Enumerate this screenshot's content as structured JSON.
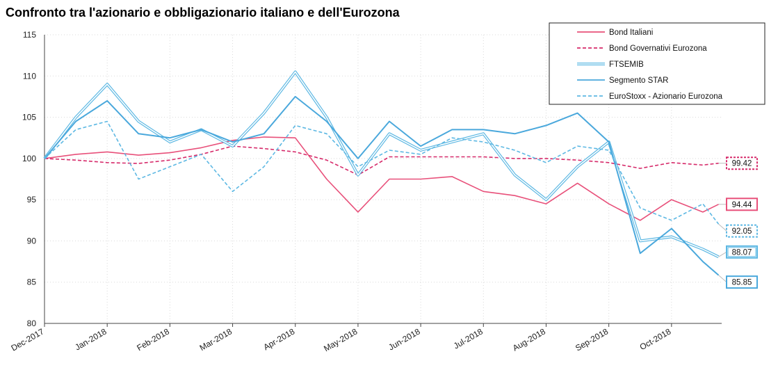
{
  "title": "Confronto tra l'azionario e obbligazionario italiano e dell'Eurozona",
  "chart_data": {
    "type": "line",
    "title": "Confronto tra l'azionario e obbligazionario italiano e dell'Eurozona",
    "ylim": [
      80,
      115
    ],
    "yticks": [
      80,
      85,
      90,
      95,
      100,
      105,
      110,
      115
    ],
    "x_tick_labels": [
      "Dec-2017",
      "Jan-2018",
      "Feb-2018",
      "Mar-2018",
      "Apr-2018",
      "May-2018",
      "Jun-2018",
      "Jul-2018",
      "Aug-2018",
      "Sep-2018",
      "Oct-2018"
    ],
    "grid": true,
    "legend_position": "top-right",
    "x_months": [
      0,
      0.5,
      1,
      1.5,
      2,
      2.5,
      3,
      3.5,
      4,
      4.5,
      5,
      5.5,
      6,
      6.5,
      7,
      7.5,
      8,
      8.5,
      9,
      9.5,
      10,
      10.5,
      10.75
    ],
    "series": [
      {
        "name": "Bond Italiani",
        "color": "#e8507a",
        "style": "solid",
        "end_label": "94.44",
        "values": [
          100,
          100.5,
          100.8,
          100.4,
          100.7,
          101.3,
          102.2,
          102.6,
          102.5,
          97.5,
          93.5,
          97.5,
          97.5,
          97.8,
          96.0,
          95.5,
          94.5,
          97.0,
          94.5,
          92.5,
          95.0,
          93.5,
          94.44
        ]
      },
      {
        "name": "Bond Governativi Eurozona",
        "color": "#d62a6a",
        "style": "dashed",
        "end_label": "99.42",
        "values": [
          100,
          99.8,
          99.5,
          99.4,
          99.8,
          100.5,
          101.5,
          101.2,
          100.8,
          99.8,
          98.0,
          100.2,
          100.2,
          100.2,
          100.2,
          100.0,
          100.0,
          99.8,
          99.5,
          98.8,
          99.5,
          99.2,
          99.42
        ]
      },
      {
        "name": "FTSEMIB",
        "color": "#5db8e3",
        "style": "double",
        "end_label": "88.07",
        "values": [
          100,
          105,
          109.0,
          104.5,
          102.0,
          103.5,
          101.5,
          105.5,
          110.5,
          105.0,
          98.0,
          103.0,
          101.0,
          102.0,
          103.0,
          98.0,
          95.0,
          99.0,
          102.0,
          90.0,
          90.5,
          89.0,
          88.07
        ]
      },
      {
        "name": "Segmento STAR",
        "color": "#4aa8dc",
        "style": "solid",
        "end_label": "85.85",
        "values": [
          100,
          104.5,
          107.0,
          103.0,
          102.5,
          103.5,
          102.0,
          103.0,
          107.5,
          104.5,
          100.0,
          104.5,
          101.5,
          103.5,
          103.5,
          103.0,
          104.0,
          105.5,
          102.0,
          88.5,
          91.5,
          87.5,
          85.85
        ]
      },
      {
        "name": "EuroStoxx - Azionario Eurozona",
        "color": "#5db8e3",
        "style": "dashed",
        "end_label": "92.05",
        "values": [
          100,
          103.5,
          104.5,
          97.5,
          99.0,
          100.5,
          96.0,
          99.0,
          104.0,
          103.0,
          99.0,
          101.0,
          100.5,
          102.5,
          102.0,
          101.0,
          99.5,
          101.5,
          101.0,
          94.0,
          92.5,
          94.5,
          92.05
        ]
      }
    ]
  }
}
